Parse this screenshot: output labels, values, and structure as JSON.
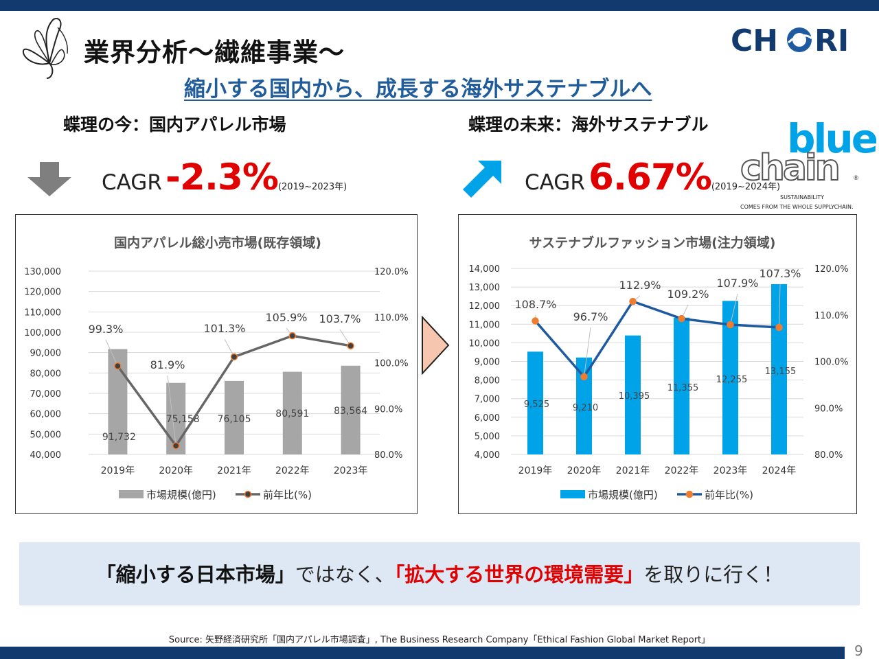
{
  "header": {
    "title": "業界分析〜繊維事業〜",
    "subtitle": "縮小する国内から、成長する海外サステナブルへ",
    "brand_logo": "CH●RI",
    "page_number": "9"
  },
  "left_section": {
    "heading": "蝶理の今：国内アパレル市場",
    "cagr_label": "CAGR",
    "cagr_value": "-2.3%",
    "cagr_period": "(2019~2023年)",
    "trend_icon": "down-arrow-icon"
  },
  "right_section": {
    "heading": "蝶理の未来：海外サステナブル",
    "cagr_label": "CAGR",
    "cagr_value": "6.67%",
    "cagr_period": "(2019~2024年)",
    "trend_icon": "up-right-arrow-icon",
    "partner_logo": {
      "line1": "blue",
      "line2": "chain",
      "tagline1": "SUSTAINABILITY",
      "tagline2": "COMES FROM THE WHOLE SUPPLYCHAIN.",
      "mark": "®"
    }
  },
  "banner": {
    "part1": "「縮小する日本市場」",
    "part2": "ではなく、",
    "part3": "「拡大する世界の環境需要」",
    "part4": "を取りに行く！"
  },
  "source": "Source: 矢野経済研究所「国内アパレル市場調査」, The Business Research Company「Ethical Fashion Global Market Report」",
  "colors": {
    "navy": "#123a6e",
    "accent_red": "#e00000",
    "subtitle_blue": "#1f5c99",
    "bar_gray": "#a6a6a6",
    "line_gray": "#666666",
    "bar_blue": "#00a2e8",
    "line_blue": "#1f5aa0",
    "marker_orange": "#ed7d31",
    "banner_bg": "#dde8f4"
  },
  "chart_data": [
    {
      "type": "bar",
      "title": "国内アパレル総小売市場(既存領域)",
      "categories": [
        "2019年",
        "2020年",
        "2021年",
        "2022年",
        "2023年"
      ],
      "series": [
        {
          "name": "市場規模(億円)",
          "type": "bar",
          "axis": "left",
          "values": [
            91732,
            75158,
            76105,
            80591,
            83564
          ],
          "labels": [
            "91,732",
            "75,158",
            "76,105",
            "80,591",
            "83,564"
          ]
        },
        {
          "name": "前年比(%)",
          "type": "line",
          "axis": "right",
          "values": [
            99.3,
            81.9,
            101.3,
            105.9,
            103.7
          ],
          "labels": [
            "99.3%",
            "81.9%",
            "101.3%",
            "105.9%",
            "103.7%"
          ]
        }
      ],
      "ylim": [
        40000,
        130000
      ],
      "y_ticks": [
        "40,000",
        "50,000",
        "60,000",
        "70,000",
        "80,000",
        "90,000",
        "100,000",
        "110,000",
        "120,000",
        "130,000"
      ],
      "y2lim": [
        80,
        120
      ],
      "y2_ticks": [
        "80.0%",
        "90.0%",
        "100.0%",
        "110.0%",
        "120.0%"
      ],
      "grid": true,
      "legend": "bottom"
    },
    {
      "type": "bar",
      "title": "サステナブルファッション市場(注力領域)",
      "categories": [
        "2019年",
        "2020年",
        "2021年",
        "2022年",
        "2023年",
        "2024年"
      ],
      "series": [
        {
          "name": "市場規模(億円)",
          "type": "bar",
          "axis": "left",
          "values": [
            9525,
            9210,
            10395,
            11355,
            12255,
            13155
          ],
          "labels": [
            "9,525",
            "9,210",
            "10,395",
            "11,355",
            "12,255",
            "13,155"
          ]
        },
        {
          "name": "前年比(%)",
          "type": "line",
          "axis": "right",
          "values": [
            108.7,
            96.7,
            112.9,
            109.2,
            107.9,
            107.3
          ],
          "labels": [
            "108.7%",
            "96.7%",
            "112.9%",
            "109.2%",
            "107.9%",
            "107.3%"
          ]
        }
      ],
      "ylim": [
        4000,
        14000
      ],
      "y_ticks": [
        "4,000",
        "5,000",
        "6,000",
        "7,000",
        "8,000",
        "9,000",
        "10,000",
        "11,000",
        "12,000",
        "13,000",
        "14,000"
      ],
      "y2lim": [
        80,
        120
      ],
      "y2_ticks": [
        "80.0%",
        "90.0%",
        "100.0%",
        "110.0%",
        "120.0%"
      ],
      "grid": true,
      "legend": "bottom"
    }
  ]
}
